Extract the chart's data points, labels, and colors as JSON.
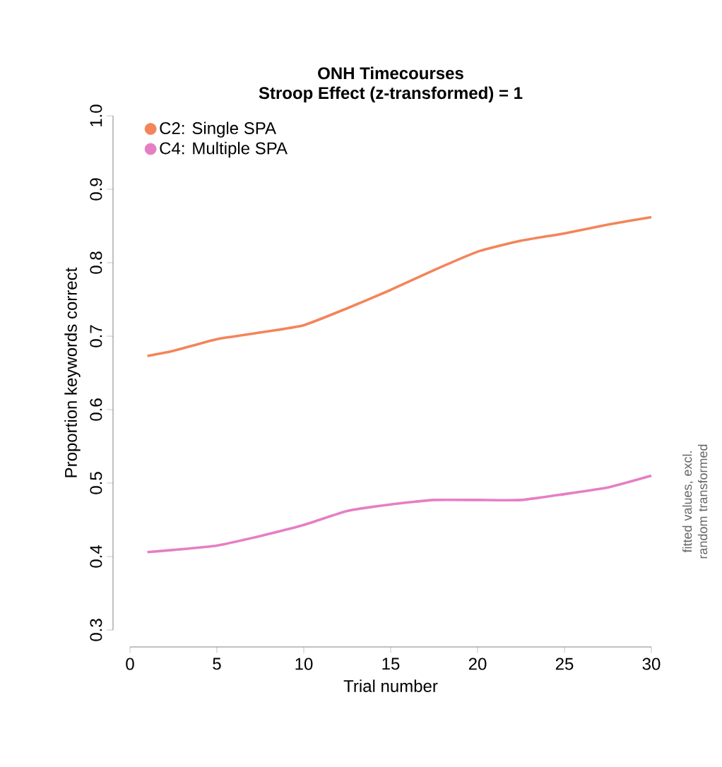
{
  "chart_data": {
    "type": "line",
    "title": "ONH Timecourses",
    "subtitle": "Stroop Effect (z-transformed) = 1",
    "xlabel": "Trial number",
    "ylabel": "Proportion keywords correct",
    "annotations": [
      "fitted values, excl. random transformed"
    ],
    "x": [
      1,
      2.5,
      5,
      7.5,
      10,
      12.5,
      15,
      17.5,
      20,
      22.5,
      25,
      27.5,
      30
    ],
    "series": [
      {
        "name": "C2: Single SPA",
        "color": "#f4845a",
        "values": [
          0.673,
          0.68,
          0.696,
          0.705,
          0.715,
          0.738,
          0.763,
          0.79,
          0.815,
          0.83,
          0.84,
          0.852,
          0.862
        ]
      },
      {
        "name": "C4: Multiple SPA",
        "color": "#e57fc4",
        "values": [
          0.406,
          0.409,
          0.415,
          0.428,
          0.443,
          0.462,
          0.471,
          0.477,
          0.477,
          0.477,
          0.485,
          0.494,
          0.51
        ]
      }
    ],
    "xlim": [
      0,
      30
    ],
    "ylim": [
      0.3,
      1.0
    ],
    "xticks": [
      0,
      5,
      10,
      15,
      20,
      25,
      30
    ],
    "yticks": [
      {
        "value": 0.3,
        "label": "0.3"
      },
      {
        "value": 0.4,
        "label": "0.4"
      },
      {
        "value": 0.5,
        "label": "0.5"
      },
      {
        "value": 0.6,
        "label": "0.6"
      },
      {
        "value": 0.7,
        "label": "0.7"
      },
      {
        "value": 0.8,
        "label": "0.8"
      },
      {
        "value": 0.9,
        "label": "0.9"
      },
      {
        "value": 1.0,
        "label": "1.0"
      }
    ],
    "legend": "top left",
    "grid": false,
    "marker": "none",
    "line_style": "solid"
  }
}
